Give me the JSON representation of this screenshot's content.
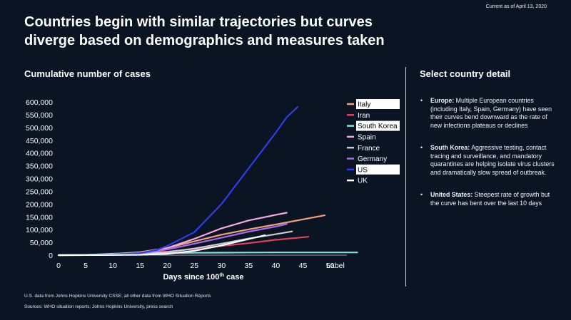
{
  "header": {
    "current_as_of": "Current as of April 13, 2020",
    "title": "Countries begin with similar trajectories but curves diverge based on demographics and measures taken"
  },
  "chart_heading": "Cumulative number of cases",
  "detail": {
    "heading": "Select country detail",
    "items": [
      {
        "bullet": "•",
        "lead": "Europe:",
        "text": " Multiple European countries (including Italy, Spain, Germany) have seen their curves bend downward as the rate of new infections plateaus or declines"
      },
      {
        "bullet": "•",
        "lead": "South Korea:",
        "text": " Aggressive testing, contact tracing and surveillance, and mandatory quarantines are helping isolate virus clusters and dramatically slow spread of outbreak."
      },
      {
        "bullet": "•",
        "lead": "United States:",
        "text": "  Steepest rate of growth but the curve has bent over the last 10 days"
      }
    ]
  },
  "footnotes": {
    "line1": "U.S. data from Johns Hopkins University CSSE; all other data from WHO Situation Reports",
    "line2": "Sources: WHO situation reports; Johns Hopkins University, press search"
  },
  "chart_data": {
    "type": "line",
    "xlabel_main": "Days since 100",
    "xlabel_sup": "th",
    "xlabel_end": " case",
    "x_end_label": "Label",
    "xlim": [
      0,
      54
    ],
    "ylim": [
      0,
      600000
    ],
    "xticks": [
      0,
      5,
      10,
      15,
      20,
      25,
      30,
      35,
      40,
      45,
      50
    ],
    "yticks": [
      0,
      50000,
      100000,
      150000,
      200000,
      250000,
      300000,
      350000,
      400000,
      450000,
      500000,
      550000,
      600000
    ],
    "ytick_labels": [
      "0",
      "50,000",
      "100,000",
      "150,000",
      "200,000",
      "250,000",
      "300,000",
      "350,000",
      "400,000",
      "450,000",
      "500,000",
      "550,000",
      "600,000"
    ],
    "series": [
      {
        "name": "Italy",
        "color": "#f4a07a",
        "legend_bg": "#ffffff",
        "legend_fg": "#000000",
        "points": [
          [
            0,
            100
          ],
          [
            5,
            1100
          ],
          [
            10,
            4600
          ],
          [
            15,
            12000
          ],
          [
            20,
            28000
          ],
          [
            25,
            54000
          ],
          [
            30,
            80000
          ],
          [
            35,
            101000
          ],
          [
            40,
            120000
          ],
          [
            45,
            140000
          ],
          [
            49,
            156000
          ]
        ]
      },
      {
        "name": "Iran",
        "color": "#e0405c",
        "legend_bg": "",
        "legend_fg": "#ffffff",
        "points": [
          [
            0,
            100
          ],
          [
            5,
            700
          ],
          [
            10,
            3500
          ],
          [
            15,
            9000
          ],
          [
            20,
            14000
          ],
          [
            25,
            24000
          ],
          [
            30,
            36000
          ],
          [
            35,
            47000
          ],
          [
            40,
            60000
          ],
          [
            46,
            72000
          ]
        ]
      },
      {
        "name": "South Korea",
        "color": "#7fe3e3",
        "legend_bg": "#ffffff",
        "legend_fg": "#000000",
        "points": [
          [
            0,
            100
          ],
          [
            5,
            1200
          ],
          [
            10,
            5500
          ],
          [
            15,
            7900
          ],
          [
            20,
            8400
          ],
          [
            25,
            9200
          ],
          [
            30,
            9900
          ],
          [
            35,
            10300
          ],
          [
            40,
            10500
          ],
          [
            45,
            10500
          ],
          [
            55,
            10500
          ]
        ]
      },
      {
        "name": "Spain",
        "color": "#f5a9e3",
        "legend_bg": "",
        "legend_fg": "#ffffff",
        "points": [
          [
            0,
            100
          ],
          [
            5,
            300
          ],
          [
            10,
            2000
          ],
          [
            15,
            8000
          ],
          [
            20,
            28000
          ],
          [
            25,
            64000
          ],
          [
            30,
            105000
          ],
          [
            35,
            136000
          ],
          [
            40,
            158000
          ],
          [
            42,
            166000
          ]
        ]
      },
      {
        "name": "France",
        "color": "#c8ccd4",
        "legend_bg": "",
        "legend_fg": "#ffffff",
        "points": [
          [
            0,
            100
          ],
          [
            5,
            300
          ],
          [
            10,
            1300
          ],
          [
            15,
            4500
          ],
          [
            20,
            12000
          ],
          [
            25,
            26000
          ],
          [
            30,
            45000
          ],
          [
            35,
            65000
          ],
          [
            40,
            82000
          ],
          [
            43,
            93000
          ]
        ]
      },
      {
        "name": "Germany",
        "color": "#a06cf5",
        "legend_bg": "",
        "legend_fg": "#ffffff",
        "points": [
          [
            0,
            100
          ],
          [
            5,
            200
          ],
          [
            10,
            1000
          ],
          [
            15,
            6000
          ],
          [
            20,
            22000
          ],
          [
            25,
            45000
          ],
          [
            30,
            68000
          ],
          [
            35,
            92000
          ],
          [
            40,
            112000
          ],
          [
            42,
            122000
          ]
        ]
      },
      {
        "name": "US",
        "color": "#2d3ee8",
        "legend_bg": "#ffffff",
        "legend_fg": "#000000",
        "points": [
          [
            0,
            100
          ],
          [
            5,
            500
          ],
          [
            10,
            2500
          ],
          [
            15,
            8000
          ],
          [
            18,
            20000
          ],
          [
            20,
            36000
          ],
          [
            25,
            90000
          ],
          [
            30,
            200000
          ],
          [
            35,
            340000
          ],
          [
            40,
            480000
          ],
          [
            42,
            540000
          ],
          [
            44,
            580000
          ]
        ]
      },
      {
        "name": "UK",
        "color": "#ffffff",
        "legend_bg": "",
        "legend_fg": "#ffffff",
        "points": [
          [
            0,
            100
          ],
          [
            5,
            150
          ],
          [
            10,
            500
          ],
          [
            15,
            1400
          ],
          [
            20,
            5000
          ],
          [
            25,
            17000
          ],
          [
            30,
            38000
          ],
          [
            35,
            63000
          ],
          [
            38,
            78000
          ]
        ]
      }
    ]
  }
}
